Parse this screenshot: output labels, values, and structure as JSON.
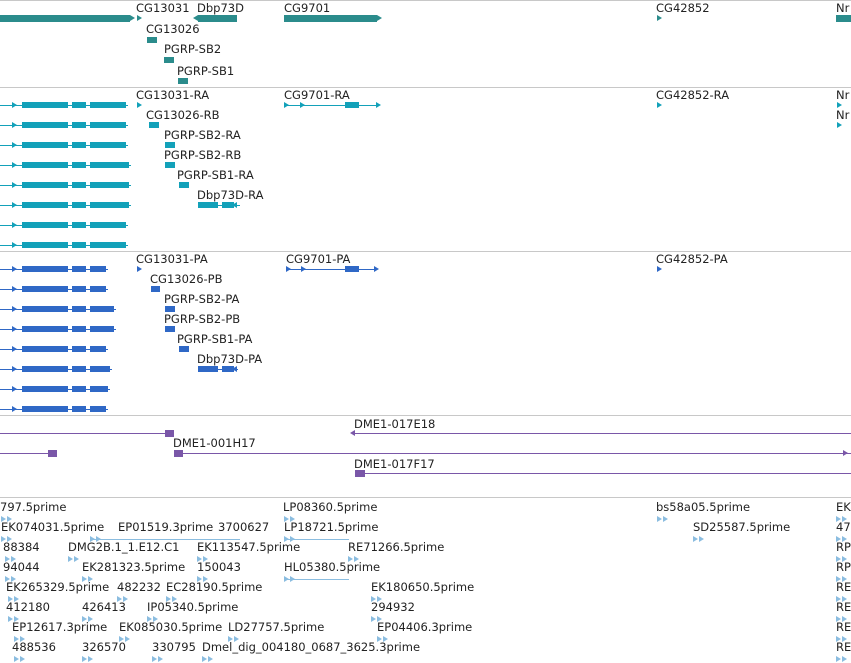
{
  "colors": {
    "gene": "#2b8c8c",
    "mrna": "#13a1b9",
    "cds": "#2f68c6",
    "clone": "#7a57a8",
    "est": "#8bbde0"
  },
  "gene_track": {
    "labels": [
      "CG13031",
      "Dbp73D",
      "CG9701",
      "CG42852",
      "Nr",
      "CG13026",
      "PGRP-SB2",
      "PGRP-SB1"
    ]
  },
  "mrna_track": {
    "labels": [
      "CG13031-RA",
      "CG9701-RA",
      "CG42852-RA",
      "Nr",
      "CG13026-RB",
      "Nr",
      "PGRP-SB2-RA",
      "PGRP-SB2-RB",
      "PGRP-SB1-RA",
      "Dbp73D-RA"
    ]
  },
  "cds_track": {
    "labels": [
      "CG13031-PA",
      "CG9701-PA",
      "CG42852-PA",
      "CG13026-PB",
      "PGRP-SB2-PA",
      "PGRP-SB2-PB",
      "PGRP-SB1-PA",
      "Dbp73D-PA"
    ]
  },
  "clone_track": {
    "labels": [
      "DME1-017E18",
      "DME1-001H17",
      "DME1-017F17"
    ]
  },
  "est_track": {
    "labels": [
      "797.5prime",
      "LP08360.5prime",
      "bs58a05.5prime",
      "EK",
      "EK074031.5prime",
      "EP01519.3prime",
      "3700627",
      "LP18721.5prime",
      "SD25587.5prime",
      "47",
      "88384",
      "DMG2B.1_1.E12.C1",
      "EK113547.5prime",
      "RE71266.5prime",
      "RP",
      "94044",
      "EK281323.5prime",
      "150043",
      "HL05380.5prime",
      "RP",
      "EK265329.5prime",
      "482232",
      "EC28190.5prime",
      "EK180650.5prime",
      "RE",
      "412180",
      "426413",
      "IP05340.5prime",
      "294932",
      "RE",
      "EP12617.3prime",
      "EK085030.5prime",
      "LD27757.5prime",
      "EP04406.3prime",
      "RE",
      "488536",
      "326570",
      "330795",
      "Dmel_dig_004180_0687_3625.3prime",
      "RE"
    ]
  }
}
